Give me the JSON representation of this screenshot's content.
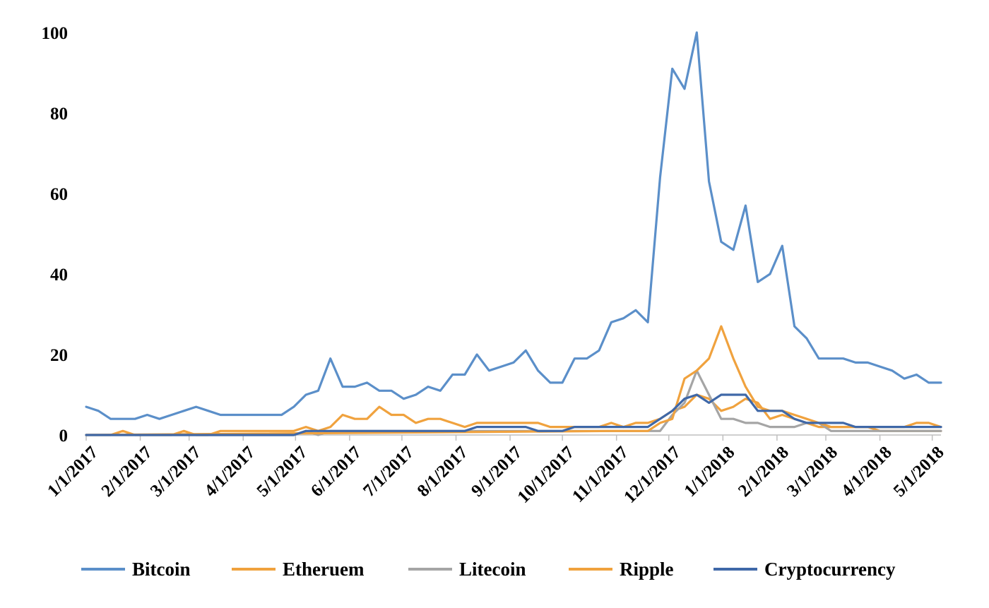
{
  "chart_data": {
    "type": "line",
    "title": "",
    "xlabel": "",
    "ylabel": "",
    "ylim": [
      0,
      100
    ],
    "yticks": [
      "0",
      "20",
      "40",
      "60",
      "80",
      "100"
    ],
    "grid": false,
    "legend_position": "bottom",
    "x_start": "1/1/2017",
    "x_end": "5/6/2018",
    "xticks": [
      "1/1/2017",
      "2/1/2017",
      "3/1/2017",
      "4/1/2017",
      "5/1/2017",
      "6/1/2017",
      "7/1/2017",
      "8/1/2017",
      "9/1/2017",
      "10/1/2017",
      "11/1/2017",
      "12/1/2017",
      "1/1/2018",
      "2/1/2018",
      "3/1/2018",
      "4/1/2018",
      "5/1/2018"
    ],
    "series": [
      {
        "name": "Bitcoin",
        "color": "#5B8FC9",
        "points": [
          [
            "1/1/2017",
            7
          ],
          [
            "1/8/2017",
            6
          ],
          [
            "1/15/2017",
            4
          ],
          [
            "1/22/2017",
            4
          ],
          [
            "1/29/2017",
            4
          ],
          [
            "2/5/2017",
            5
          ],
          [
            "2/12/2017",
            4
          ],
          [
            "2/19/2017",
            5
          ],
          [
            "2/26/2017",
            6
          ],
          [
            "3/5/2017",
            7
          ],
          [
            "3/12/2017",
            6
          ],
          [
            "3/19/2017",
            5
          ],
          [
            "3/26/2017",
            5
          ],
          [
            "4/2/2017",
            5
          ],
          [
            "4/9/2017",
            5
          ],
          [
            "4/16/2017",
            5
          ],
          [
            "4/23/2017",
            5
          ],
          [
            "4/30/2017",
            7
          ],
          [
            "5/7/2017",
            10
          ],
          [
            "5/14/2017",
            11
          ],
          [
            "5/21/2017",
            19
          ],
          [
            "5/28/2017",
            12
          ],
          [
            "6/4/2017",
            12
          ],
          [
            "6/11/2017",
            13
          ],
          [
            "6/18/2017",
            11
          ],
          [
            "6/25/2017",
            11
          ],
          [
            "7/2/2017",
            9
          ],
          [
            "7/9/2017",
            10
          ],
          [
            "7/16/2017",
            12
          ],
          [
            "7/23/2017",
            11
          ],
          [
            "7/30/2017",
            15
          ],
          [
            "8/6/2017",
            15
          ],
          [
            "8/13/2017",
            20
          ],
          [
            "8/20/2017",
            16
          ],
          [
            "8/27/2017",
            17
          ],
          [
            "9/3/2017",
            18
          ],
          [
            "9/10/2017",
            21
          ],
          [
            "9/17/2017",
            16
          ],
          [
            "9/24/2017",
            13
          ],
          [
            "10/1/2017",
            13
          ],
          [
            "10/8/2017",
            19
          ],
          [
            "10/15/2017",
            19
          ],
          [
            "10/22/2017",
            21
          ],
          [
            "10/29/2017",
            28
          ],
          [
            "11/5/2017",
            29
          ],
          [
            "11/12/2017",
            31
          ],
          [
            "11/19/2017",
            28
          ],
          [
            "11/26/2017",
            64
          ],
          [
            "12/3/2017",
            91
          ],
          [
            "12/10/2017",
            86
          ],
          [
            "12/17/2017",
            100
          ],
          [
            "12/24/2017",
            63
          ],
          [
            "12/31/2017",
            48
          ],
          [
            "1/7/2018",
            46
          ],
          [
            "1/14/2018",
            57
          ],
          [
            "1/21/2018",
            38
          ],
          [
            "1/28/2018",
            40
          ],
          [
            "2/4/2018",
            47
          ],
          [
            "2/11/2018",
            27
          ],
          [
            "2/18/2018",
            24
          ],
          [
            "2/25/2018",
            19
          ],
          [
            "3/4/2018",
            19
          ],
          [
            "3/11/2018",
            19
          ],
          [
            "3/18/2018",
            18
          ],
          [
            "3/25/2018",
            18
          ],
          [
            "4/1/2018",
            17
          ],
          [
            "4/8/2018",
            16
          ],
          [
            "4/15/2018",
            14
          ],
          [
            "4/22/2018",
            15
          ],
          [
            "4/29/2018",
            13
          ],
          [
            "5/6/2018",
            13
          ]
        ]
      },
      {
        "name": "Etheruem",
        "color": "#F0A23E",
        "points": [
          [
            "1/1/2017",
            0
          ],
          [
            "1/15/2017",
            0
          ],
          [
            "1/22/2017",
            1
          ],
          [
            "1/29/2017",
            0
          ],
          [
            "2/19/2017",
            0
          ],
          [
            "2/26/2017",
            1
          ],
          [
            "3/5/2017",
            0
          ],
          [
            "3/12/2017",
            0
          ],
          [
            "3/19/2017",
            1
          ],
          [
            "4/30/2017",
            1
          ],
          [
            "5/7/2017",
            2
          ],
          [
            "5/14/2017",
            1
          ],
          [
            "5/21/2017",
            2
          ],
          [
            "5/28/2017",
            5
          ],
          [
            "6/4/2017",
            4
          ],
          [
            "6/11/2017",
            4
          ],
          [
            "6/18/2017",
            7
          ],
          [
            "6/25/2017",
            5
          ],
          [
            "7/2/2017",
            5
          ],
          [
            "7/9/2017",
            3
          ],
          [
            "7/16/2017",
            4
          ],
          [
            "7/23/2017",
            4
          ],
          [
            "7/30/2017",
            3
          ],
          [
            "8/6/2017",
            2
          ],
          [
            "8/13/2017",
            3
          ],
          [
            "9/17/2017",
            3
          ],
          [
            "9/24/2017",
            2
          ],
          [
            "10/22/2017",
            2
          ],
          [
            "10/29/2017",
            3
          ],
          [
            "11/5/2017",
            2
          ],
          [
            "11/12/2017",
            3
          ],
          [
            "11/19/2017",
            3
          ],
          [
            "11/26/2017",
            4
          ],
          [
            "12/3/2017",
            6
          ],
          [
            "12/10/2017",
            7
          ],
          [
            "12/17/2017",
            10
          ],
          [
            "12/24/2017",
            9
          ],
          [
            "12/31/2017",
            6
          ],
          [
            "1/7/2018",
            7
          ],
          [
            "1/14/2018",
            9
          ],
          [
            "1/21/2018",
            8
          ],
          [
            "1/28/2018",
            4
          ],
          [
            "2/4/2018",
            5
          ],
          [
            "2/11/2018",
            4
          ],
          [
            "2/18/2018",
            3
          ],
          [
            "2/25/2018",
            2
          ],
          [
            "3/25/2018",
            2
          ],
          [
            "4/1/2018",
            1
          ],
          [
            "4/22/2018",
            1
          ],
          [
            "4/29/2018",
            1
          ],
          [
            "5/6/2018",
            1
          ]
        ]
      },
      {
        "name": "Litecoin",
        "color": "#A5A5A5",
        "points": [
          [
            "1/1/2017",
            0
          ],
          [
            "4/30/2017",
            0
          ],
          [
            "5/7/2017",
            1
          ],
          [
            "5/14/2017",
            0
          ],
          [
            "5/21/2017",
            1
          ],
          [
            "8/27/2017",
            1
          ],
          [
            "9/3/2017",
            1
          ],
          [
            "9/10/2017",
            1
          ],
          [
            "11/26/2017",
            1
          ],
          [
            "12/3/2017",
            5
          ],
          [
            "12/10/2017",
            8
          ],
          [
            "12/17/2017",
            16
          ],
          [
            "12/24/2017",
            10
          ],
          [
            "12/31/2017",
            4
          ],
          [
            "1/7/2018",
            4
          ],
          [
            "1/14/2018",
            3
          ],
          [
            "1/21/2018",
            3
          ],
          [
            "1/28/2018",
            2
          ],
          [
            "2/4/2018",
            2
          ],
          [
            "2/11/2018",
            2
          ],
          [
            "2/18/2018",
            3
          ],
          [
            "2/25/2018",
            3
          ],
          [
            "3/4/2018",
            1
          ],
          [
            "5/6/2018",
            1
          ]
        ]
      },
      {
        "name": "Ripple",
        "color": "#F0A23E",
        "points": [
          [
            "1/1/2017",
            0
          ],
          [
            "10/29/2017",
            1
          ],
          [
            "11/19/2017",
            1
          ],
          [
            "11/26/2017",
            3
          ],
          [
            "12/3/2017",
            4
          ],
          [
            "12/10/2017",
            14
          ],
          [
            "12/17/2017",
            16
          ],
          [
            "12/24/2017",
            19
          ],
          [
            "12/31/2017",
            27
          ],
          [
            "1/7/2018",
            19
          ],
          [
            "1/14/2018",
            12
          ],
          [
            "1/21/2018",
            7
          ],
          [
            "1/28/2018",
            6
          ],
          [
            "2/4/2018",
            6
          ],
          [
            "2/11/2018",
            5
          ],
          [
            "2/18/2018",
            4
          ],
          [
            "2/25/2018",
            3
          ],
          [
            "3/4/2018",
            2
          ],
          [
            "3/11/2018",
            2
          ],
          [
            "3/18/2018",
            2
          ],
          [
            "3/25/2018",
            2
          ],
          [
            "4/1/2018",
            2
          ],
          [
            "4/8/2018",
            2
          ],
          [
            "4/15/2018",
            2
          ],
          [
            "4/22/2018",
            3
          ],
          [
            "4/29/2018",
            3
          ],
          [
            "5/6/2018",
            2
          ]
        ]
      },
      {
        "name": "Cryptocurrency",
        "color": "#3F68A8",
        "points": [
          [
            "1/1/2017",
            0
          ],
          [
            "4/30/2017",
            0
          ],
          [
            "5/7/2017",
            1
          ],
          [
            "8/6/2017",
            1
          ],
          [
            "8/13/2017",
            2
          ],
          [
            "9/10/2017",
            2
          ],
          [
            "9/17/2017",
            1
          ],
          [
            "10/1/2017",
            1
          ],
          [
            "10/8/2017",
            2
          ],
          [
            "11/19/2017",
            2
          ],
          [
            "11/26/2017",
            4
          ],
          [
            "12/3/2017",
            6
          ],
          [
            "12/10/2017",
            9
          ],
          [
            "12/17/2017",
            10
          ],
          [
            "12/24/2017",
            8
          ],
          [
            "12/31/2017",
            10
          ],
          [
            "1/7/2018",
            10
          ],
          [
            "1/14/2018",
            10
          ],
          [
            "1/21/2018",
            6
          ],
          [
            "1/28/2018",
            6
          ],
          [
            "2/4/2018",
            6
          ],
          [
            "2/11/2018",
            4
          ],
          [
            "2/18/2018",
            3
          ],
          [
            "2/25/2018",
            3
          ],
          [
            "3/4/2018",
            3
          ],
          [
            "3/11/2018",
            3
          ],
          [
            "3/18/2018",
            2
          ],
          [
            "5/6/2018",
            2
          ]
        ]
      }
    ]
  }
}
